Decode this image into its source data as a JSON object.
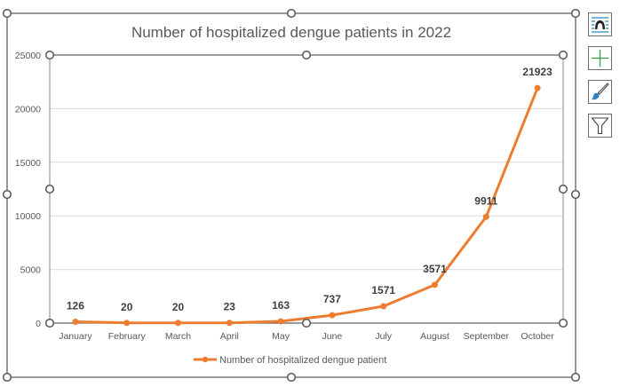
{
  "chart_data": {
    "type": "line",
    "title": "Number of hospitalized dengue patients in 2022",
    "xlabel": "",
    "ylabel": "",
    "categories": [
      "January",
      "February",
      "March",
      "April",
      "May",
      "June",
      "July",
      "August",
      "September",
      "October"
    ],
    "series": [
      {
        "name": "Number of hospitalized dengue patient",
        "values": [
          126,
          20,
          20,
          23,
          163,
          737,
          1571,
          3571,
          9911,
          21923
        ],
        "color": "#ED7D31",
        "markers": true,
        "data_labels": true
      }
    ],
    "ylim": [
      0,
      25000
    ],
    "yticks": [
      0,
      5000,
      10000,
      15000,
      20000,
      25000
    ],
    "grid": true,
    "legend": "bottom"
  },
  "side_buttons": [
    {
      "name": "chart-elements-button",
      "icon": "chart-elements-icon"
    },
    {
      "name": "chart-add-element-button",
      "icon": "plus-icon"
    },
    {
      "name": "chart-styles-button",
      "icon": "paintbrush-icon"
    },
    {
      "name": "chart-filters-button",
      "icon": "filter-icon"
    }
  ],
  "colors": {
    "series": "#ED7D31",
    "grid": "#D9D9D9",
    "axis": "#7F7F7F",
    "text": "#595959",
    "label": "#404040",
    "selection": "#5F5F5F",
    "accent_green": "#2EA043",
    "accent_blue": "#2E86C1"
  }
}
